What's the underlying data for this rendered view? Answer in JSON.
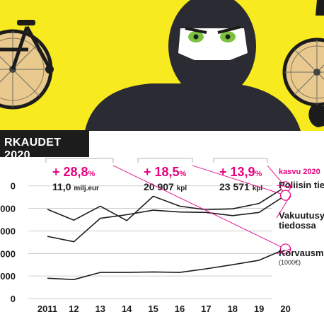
{
  "header": {
    "title": "RKAUDET 2020"
  },
  "annotations": {
    "growth_label": "kasvu 2020",
    "items": [
      {
        "pct": "+ 28,8",
        "pct_unit": "%",
        "value": "11,0",
        "unit": "milj.eur"
      },
      {
        "pct": "+ 18,5",
        "pct_unit": "%",
        "value": "20 907",
        "unit": "kpl"
      },
      {
        "pct": "+ 13,9",
        "pct_unit": "%",
        "value": "23 571",
        "unit": "kpl"
      }
    ]
  },
  "colors": {
    "accent": "#e6007e",
    "hero_background": "#f7ea1f",
    "dark": "#1c1c1c"
  },
  "chart_data": {
    "type": "line",
    "categories": [
      "2011",
      "12",
      "13",
      "14",
      "15",
      "16",
      "17",
      "18",
      "19",
      "20"
    ],
    "y_ticks": [
      "0",
      "0000",
      "0000",
      "0000",
      "0000",
      "0"
    ],
    "series": [
      {
        "name": "Poliisin tie",
        "name_line2": "",
        "unit_note": "",
        "values": [
          19800,
          17400,
          20500,
          17300,
          22700,
          20500,
          19700,
          19900,
          21100,
          24800
        ]
      },
      {
        "name": "Vakuutusy",
        "name_line2": "tiedossa",
        "unit_note": "",
        "values": [
          13800,
          12600,
          17800,
          18600,
          19600,
          19200,
          19100,
          18400,
          19100,
          22900
        ]
      },
      {
        "name": "Korvausmä",
        "name_line2": "",
        "unit_note": "(1000€)",
        "values": [
          4500,
          4200,
          5800,
          5800,
          5900,
          5800,
          6600,
          7500,
          8500,
          11000
        ]
      }
    ],
    "ylim": [
      0,
      27000
    ],
    "grid": true
  }
}
